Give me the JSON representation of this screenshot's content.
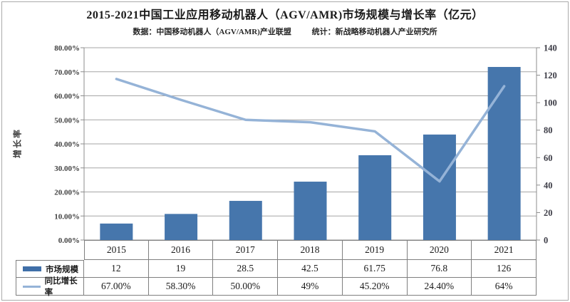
{
  "header": {
    "title": "2015-2021中国工业应用移动机器人（AGV/AMR)市场规模与增长率（亿元）",
    "source_label": "数据：中国移动机器人（AGV/AMR)产业联盟",
    "stat_label": "统计：新战略移动机器人产业研究所"
  },
  "chart_data": {
    "type": "combo-bar-line",
    "categories": [
      "2015",
      "2016",
      "2017",
      "2018",
      "2019",
      "2020",
      "2021"
    ],
    "series": [
      {
        "name": "市场规模",
        "kind": "bar",
        "axis": "right",
        "values": [
          12,
          19,
          28.5,
          42.5,
          61.75,
          76.8,
          126
        ],
        "display_values": [
          "12",
          "19",
          "28.5",
          "42.5",
          "61.75",
          "76.8",
          "126"
        ],
        "color": "#4676ac",
        "swatch": "#3f6fa8"
      },
      {
        "name": "同比增长率",
        "kind": "line",
        "axis": "left",
        "values": [
          67,
          58.3,
          50,
          49,
          45.2,
          24.4,
          64
        ],
        "display_values": [
          "67.00%",
          "58.30%",
          "50.00%",
          "49%",
          "45.20%",
          "24.40%",
          "64%"
        ],
        "color": "#95b3d7",
        "swatch": "#95b3d7"
      }
    ],
    "left_axis": {
      "title": "增长率",
      "min": 0,
      "max": 80,
      "step": 10,
      "tick_labels": [
        "0.00%",
        "10.00%",
        "20.00%",
        "30.00%",
        "40.00%",
        "50.00%",
        "60.00%",
        "70.00%",
        "80.00%"
      ]
    },
    "right_axis": {
      "min": 0,
      "max": 140,
      "step": 20,
      "tick_labels": [
        "0",
        "20",
        "40",
        "60",
        "80",
        "100",
        "120",
        "140"
      ]
    },
    "gridlines": "horizontal",
    "legend_position": "table-left-column"
  },
  "colors": {
    "grid": "#a6a6a6",
    "axis": "#8c8c8c",
    "table_border": "#7f7f7f",
    "left_tick_text": "#404040",
    "right_tick_text": "#3c3c46",
    "title_text": "#1a1a1a",
    "frame": "#ababab",
    "background": "#ffffff"
  }
}
